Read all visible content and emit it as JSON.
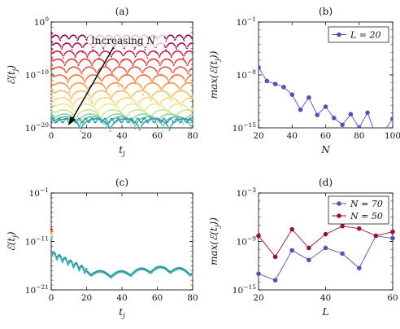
{
  "chart_data": [
    {
      "id": "a",
      "type": "scatter",
      "panel_label": "(a)",
      "xlabel": "t_j",
      "ylabel": "ℰ(t_j)",
      "xlim": [
        0,
        80
      ],
      "ylim_exp": [
        -20,
        0
      ],
      "yscale": "log",
      "xticks": [
        0,
        20,
        40,
        60,
        80
      ],
      "yticks_exp": [
        0,
        -10,
        -20
      ],
      "annotation": "Increasing N",
      "curves": [
        {
          "level_exp": -2.5,
          "color": "#8c0b45"
        },
        {
          "level_exp": -4.0,
          "color": "#a51744"
        },
        {
          "level_exp": -5.5,
          "color": "#c12a44"
        },
        {
          "level_exp": -7.0,
          "color": "#d63f40"
        },
        {
          "level_exp": -8.5,
          "color": "#e4593f"
        },
        {
          "level_exp": -10.0,
          "color": "#ef7744"
        },
        {
          "level_exp": -11.5,
          "color": "#f6994f"
        },
        {
          "level_exp": -13.0,
          "color": "#fbbd62"
        },
        {
          "level_exp": -14.3,
          "color": "#fad77f"
        },
        {
          "level_exp": -15.5,
          "color": "#ece79b"
        },
        {
          "level_exp": -16.6,
          "color": "#c9e49f"
        },
        {
          "level_exp": -17.4,
          "color": "#98d4a3"
        },
        {
          "level_exp": -17.9,
          "color": "#62bea9"
        },
        {
          "level_exp": -18.3,
          "color": "#3aa2b0"
        }
      ]
    },
    {
      "id": "b",
      "type": "line",
      "panel_label": "(b)",
      "xlabel": "N",
      "ylabel": "max(ℰ(t_j))",
      "xlim": [
        20,
        100
      ],
      "ylim_exp": [
        -15,
        -1
      ],
      "yscale": "log",
      "xticks": [
        20,
        40,
        60,
        80,
        100
      ],
      "yticks_exp": [
        -1,
        -8,
        -15
      ],
      "legend_position": "top-right",
      "series": [
        {
          "name": "L = 20",
          "color": "#5b4fb4",
          "x": [
            20,
            25,
            30,
            35,
            40,
            45,
            50,
            55,
            60,
            65,
            70,
            75,
            80,
            85,
            90,
            95,
            100
          ],
          "y_exp": [
            -7.0,
            -8.8,
            -9.2,
            -9.6,
            -10.6,
            -12.6,
            -11.0,
            -13.3,
            -12.2,
            -13.7,
            -14.6,
            -13.2,
            -15.0,
            -13.0,
            -16.0,
            -15.4,
            -13.8
          ]
        }
      ]
    },
    {
      "id": "c",
      "type": "scatter",
      "panel_label": "(c)",
      "xlabel": "t_j",
      "ylabel": "ℰ(t_j)",
      "xlim": [
        0,
        80
      ],
      "ylim_exp": [
        -21,
        -1
      ],
      "yscale": "log",
      "xticks": [
        0,
        20,
        40,
        60,
        80
      ],
      "yticks_exp": [
        -1,
        -11,
        -21
      ]
    },
    {
      "id": "d",
      "type": "line",
      "panel_label": "(d)",
      "xlabel": "L",
      "ylabel": "max(ℰ(t_j))",
      "xlim": [
        20,
        60
      ],
      "ylim_exp": [
        -15,
        -3
      ],
      "yscale": "log",
      "xticks": [
        20,
        40,
        60
      ],
      "yticks_exp": [
        -3,
        -9,
        -15
      ],
      "legend_position": "top-right",
      "series": [
        {
          "name": "N = 70",
          "color": "#5b4fb4",
          "x": [
            20,
            25,
            30,
            35,
            40,
            45,
            50,
            55,
            60
          ],
          "y_exp": [
            -13.0,
            -13.8,
            -10.1,
            -11.3,
            -9.8,
            -10.5,
            -12.3,
            -8.3,
            -8.6
          ]
        },
        {
          "name": "N = 50",
          "color": "#9b0c3f",
          "x": [
            20,
            25,
            30,
            35,
            40,
            45,
            50,
            55,
            60
          ],
          "y_exp": [
            -8.3,
            -10.9,
            -7.5,
            -9.8,
            -8.1,
            -7.1,
            -7.4,
            -8.3,
            -7.8
          ]
        }
      ]
    }
  ]
}
